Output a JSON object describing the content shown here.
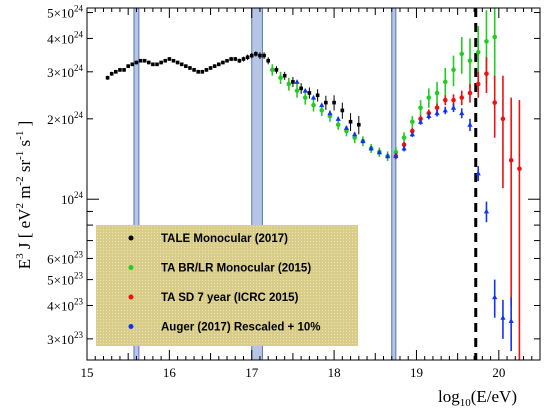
{
  "chart_data": {
    "type": "scatter",
    "xlabel_base": "log",
    "xlabel_sub": "10",
    "xlabel_rest": "(E/eV)",
    "ylabel_e": "E",
    "ylabel_e_sup": "3",
    "ylabel_j": " J [ eV",
    "ylabel_2": "2",
    "ylabel_m": " m",
    "ylabel_m_sup": "-2",
    "ylabel_sr": " sr",
    "ylabel_sr_sup": "-1",
    "ylabel_s": " s",
    "ylabel_s_sup": "-1",
    "ylabel_close": " ]",
    "xlim": [
      15,
      20.5
    ],
    "ylim": [
      2.5e+23,
      5.2e+24
    ],
    "y_scale": "log",
    "x_ticks": [
      {
        "v": 15,
        "t": "15"
      },
      {
        "v": 16,
        "t": "16"
      },
      {
        "v": 17,
        "t": "17"
      },
      {
        "v": 18,
        "t": "18"
      },
      {
        "v": 19,
        "t": "19"
      },
      {
        "v": 20,
        "t": "20"
      }
    ],
    "y_ticks": [
      {
        "v": 3e+23,
        "m": "3",
        "e": "23"
      },
      {
        "v": 4e+23,
        "m": "4",
        "e": "23"
      },
      {
        "v": 5e+23,
        "m": "5",
        "e": "23"
      },
      {
        "v": 6e+23,
        "m": "6",
        "e": "23"
      },
      {
        "v": 1e+24,
        "m": "",
        "e": "24"
      },
      {
        "v": 2e+24,
        "m": "2",
        "e": "24"
      },
      {
        "v": 3e+24,
        "m": "3",
        "e": "24"
      },
      {
        "v": 4e+24,
        "m": "4",
        "e": "24"
      },
      {
        "v": 5e+24,
        "m": "5",
        "e": "24"
      }
    ],
    "bands": [
      [
        15.57,
        15.63
      ],
      [
        17.0,
        17.13
      ],
      [
        18.7,
        18.75
      ]
    ],
    "dashed_line_x": 19.72,
    "legend": {
      "placement": "bottom-left",
      "background": "#d8cc88",
      "entries": [
        {
          "label": "TALE Monocular (2017)",
          "color": "#000000"
        },
        {
          "label": "TA BR/LR Monocular (2015)",
          "color": "#22cc22"
        },
        {
          "label": "TA SD 7 year (ICRC 2015)",
          "color": "#ee1111"
        },
        {
          "label": "Auger (2017) Rescaled + 10%",
          "color": "#1133ee"
        }
      ]
    },
    "colors": {
      "band_fill": "#aabbe0",
      "band_stroke": "#5577bb"
    },
    "series": [
      {
        "name": "TALE Monocular (2017)",
        "color": "#000000",
        "points": [
          [
            15.25,
            2.85e+24,
            5e+22
          ],
          [
            15.3,
            2.95e+24,
            5e+22
          ],
          [
            15.35,
            3e+24,
            5e+22
          ],
          [
            15.4,
            3.05e+24,
            5e+22
          ],
          [
            15.45,
            3.05e+24,
            5e+22
          ],
          [
            15.5,
            3.15e+24,
            5e+22
          ],
          [
            15.55,
            3.2e+24,
            5e+22
          ],
          [
            15.6,
            3.25e+24,
            5e+22
          ],
          [
            15.65,
            3.3e+24,
            5e+22
          ],
          [
            15.7,
            3.3e+24,
            5e+22
          ],
          [
            15.75,
            3.25e+24,
            5e+22
          ],
          [
            15.8,
            3.2e+24,
            5e+22
          ],
          [
            15.85,
            3.2e+24,
            5e+22
          ],
          [
            15.9,
            3.25e+24,
            5e+22
          ],
          [
            15.95,
            3.3e+24,
            5e+22
          ],
          [
            16.0,
            3.35e+24,
            5e+22
          ],
          [
            16.05,
            3.3e+24,
            5e+22
          ],
          [
            16.1,
            3.25e+24,
            5e+22
          ],
          [
            16.15,
            3.2e+24,
            5e+22
          ],
          [
            16.2,
            3.15e+24,
            5e+22
          ],
          [
            16.25,
            3.1e+24,
            5e+22
          ],
          [
            16.3,
            3.05e+24,
            5e+22
          ],
          [
            16.35,
            3e+24,
            5e+22
          ],
          [
            16.4,
            3e+24,
            5e+22
          ],
          [
            16.45,
            3.05e+24,
            5e+22
          ],
          [
            16.5,
            3.1e+24,
            5e+22
          ],
          [
            16.55,
            3.15e+24,
            5e+22
          ],
          [
            16.6,
            3.2e+24,
            5e+22
          ],
          [
            16.65,
            3.25e+24,
            5e+22
          ],
          [
            16.7,
            3.3e+24,
            5e+22
          ],
          [
            16.75,
            3.35e+24,
            6e+22
          ],
          [
            16.8,
            3.35e+24,
            6e+22
          ],
          [
            16.85,
            3.3e+24,
            6e+22
          ],
          [
            16.9,
            3.35e+24,
            7e+22
          ],
          [
            16.95,
            3.4e+24,
            8e+22
          ],
          [
            17.0,
            3.45e+24,
            8e+22
          ],
          [
            17.05,
            3.5e+24,
            8e+22
          ],
          [
            17.1,
            3.45e+24,
            1e+23
          ],
          [
            17.15,
            3.45e+24,
            1e+23
          ],
          [
            17.2,
            3.3e+24,
            1e+23
          ],
          [
            17.3,
            3.05e+24,
            1e+23
          ],
          [
            17.4,
            2.9e+24,
            1e+23
          ],
          [
            17.5,
            2.75e+24,
            1.2e+23
          ],
          [
            17.6,
            2.6e+24,
            1.2e+23
          ],
          [
            17.7,
            2.5e+24,
            1.2e+23
          ],
          [
            17.8,
            2.45e+24,
            1.3e+23
          ],
          [
            17.9,
            2.3e+24,
            1.4e+23
          ],
          [
            18.0,
            2.3e+24,
            1.5e+23
          ],
          [
            18.1,
            2.15e+24,
            1.5e+23
          ],
          [
            18.2,
            1.95e+24,
            1.5e+23
          ],
          [
            18.3,
            1.9e+24,
            1.5e+23
          ]
        ]
      },
      {
        "name": "TA BR/LR Monocular (2015)",
        "color": "#22cc22",
        "points": [
          [
            17.25,
            3.05e+24,
            1.5e+23
          ],
          [
            17.35,
            2.85e+24,
            1.5e+23
          ],
          [
            17.45,
            2.7e+24,
            1.5e+23
          ],
          [
            17.55,
            2.55e+24,
            1.5e+23
          ],
          [
            17.65,
            2.4e+24,
            1.4e+23
          ],
          [
            17.75,
            2.25e+24,
            1.2e+23
          ],
          [
            17.85,
            2.15e+24,
            1e+23
          ],
          [
            17.95,
            2.05e+24,
            1e+23
          ],
          [
            18.05,
            1.9e+24,
            8e+22
          ],
          [
            18.15,
            1.8e+24,
            8e+22
          ],
          [
            18.25,
            1.7e+24,
            8e+22
          ],
          [
            18.35,
            1.65e+24,
            7e+22
          ],
          [
            18.45,
            1.55e+24,
            6e+22
          ],
          [
            18.55,
            1.5e+24,
            6e+22
          ],
          [
            18.65,
            1.45e+24,
            6e+22
          ],
          [
            18.75,
            1.5e+24,
            7e+22
          ],
          [
            18.85,
            1.7e+24,
            8e+22
          ],
          [
            18.95,
            1.95e+24,
            1e+23
          ],
          [
            19.05,
            2.2e+24,
            1.5e+23
          ],
          [
            19.15,
            2.4e+24,
            2e+23
          ],
          [
            19.25,
            2.5e+24,
            2.5e+23
          ],
          [
            19.35,
            2.75e+24,
            3.5e+23
          ],
          [
            19.45,
            3.05e+24,
            4e+23
          ],
          [
            19.55,
            3.5e+24,
            5.5e+23
          ],
          [
            19.65,
            3.3e+24,
            7e+23
          ],
          [
            19.75,
            3.55e+24,
            9e+23
          ],
          [
            19.85,
            3.9e+24,
            1.2e+24
          ],
          [
            19.95,
            4.05e+24,
            1.6e+24
          ]
        ]
      },
      {
        "name": "TA SD 7 year (ICRC 2015)",
        "color": "#ee1111",
        "points": [
          [
            18.75,
            1.45e+24,
            4e+22
          ],
          [
            18.85,
            1.6e+24,
            4e+22
          ],
          [
            18.95,
            1.8e+24,
            5e+22
          ],
          [
            19.05,
            2e+24,
            6e+22
          ],
          [
            19.15,
            2.1e+24,
            7e+22
          ],
          [
            19.25,
            2.2e+24,
            8e+22
          ],
          [
            19.35,
            2.35e+24,
            1e+23
          ],
          [
            19.45,
            2.35e+24,
            1.2e+23
          ],
          [
            19.55,
            2.4e+24,
            1.5e+23
          ],
          [
            19.65,
            2.5e+24,
            2e+23
          ],
          [
            19.75,
            2.7e+24,
            3e+23
          ],
          [
            19.85,
            2.95e+24,
            4.5e+23
          ],
          [
            19.95,
            2.3e+24,
            6e+23
          ],
          [
            20.05,
            2e+24,
            9e+23
          ],
          [
            20.15,
            1.4e+24,
            1e+24
          ],
          [
            20.25,
            1.3e+24,
            1.05e+24
          ]
        ]
      },
      {
        "name": "Auger (2017) Rescaled + 10%",
        "color": "#1133ee",
        "points": [
          [
            17.55,
            2.75e+24,
            3e+22
          ],
          [
            17.65,
            2.55e+24,
            3e+22
          ],
          [
            17.75,
            2.4e+24,
            3e+22
          ],
          [
            17.85,
            2.25e+24,
            3e+22
          ],
          [
            17.95,
            2.1e+24,
            3e+22
          ],
          [
            18.05,
            2e+24,
            3e+22
          ],
          [
            18.15,
            1.85e+24,
            3e+22
          ],
          [
            18.25,
            1.75e+24,
            3e+22
          ],
          [
            18.35,
            1.65e+24,
            3e+22
          ],
          [
            18.45,
            1.55e+24,
            3e+22
          ],
          [
            18.55,
            1.5e+24,
            3e+22
          ],
          [
            18.65,
            1.45e+24,
            3e+22
          ],
          [
            18.75,
            1.45e+24,
            3e+22
          ],
          [
            18.85,
            1.55e+24,
            4e+22
          ],
          [
            18.95,
            1.75e+24,
            4e+22
          ],
          [
            19.05,
            1.95e+24,
            5e+22
          ],
          [
            19.15,
            2.05e+24,
            6e+22
          ],
          [
            19.25,
            2.1e+24,
            6e+22
          ],
          [
            19.35,
            2.15e+24,
            7e+22
          ],
          [
            19.45,
            2.2e+24,
            8e+22
          ],
          [
            19.55,
            2.1e+24,
            9e+22
          ],
          [
            19.65,
            1.9e+24,
            1e+23
          ],
          [
            19.75,
            1.25e+24,
            8e+22
          ],
          [
            19.85,
            9e+23,
            8e+22
          ],
          [
            19.95,
            4.3e+23,
            7e+22
          ],
          [
            20.05,
            3.6e+23,
            6e+22
          ],
          [
            20.15,
            3.5e+23,
            8e+22
          ]
        ]
      }
    ]
  }
}
